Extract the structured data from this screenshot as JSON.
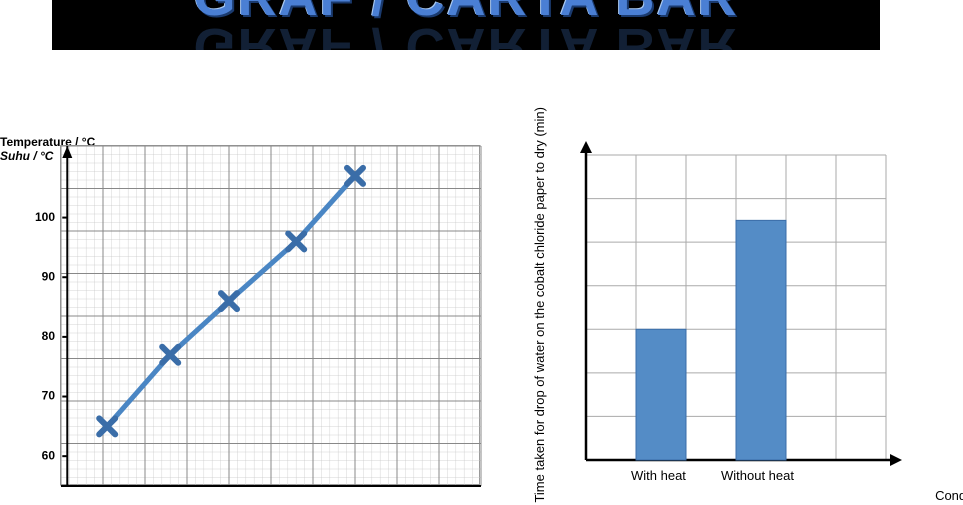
{
  "banner": {
    "text_main": "GRAF / CARTA BAR",
    "text_color": "#4a7fd4",
    "bg_color": "#000000"
  },
  "line_chart": {
    "type": "scatter-line",
    "y_title_primary": "Temperature / °C",
    "y_title_secondary": "Suhu / °C",
    "title_fontsize": 12,
    "y_ticks": [
      60,
      70,
      80,
      90,
      100
    ],
    "ylim_min": 55,
    "ylim_max": 112,
    "xlim_min": 0,
    "xlim_max": 10,
    "x_major_cols": 10,
    "y_major_rows": 8,
    "fine_per_major_x": 5,
    "fine_per_major_y": 5,
    "points_x": [
      1.1,
      2.6,
      4.0,
      5.6,
      7.0
    ],
    "points_y": [
      65,
      77,
      86,
      96,
      107
    ],
    "line_color": "#4a86c4",
    "line_width": 5,
    "marker": "x",
    "marker_color": "#3a6da8",
    "marker_size": 16,
    "marker_stroke_width": 6,
    "grid_color_fine": "#c9c9c9",
    "grid_color_major": "#888888",
    "bg_color": "#ffffff",
    "axis_color": "#000000"
  },
  "bar_chart": {
    "type": "bar",
    "y_title": "Time taken for drop of water on the cobalt chloride paper to dry (min)",
    "x_title": "Condition",
    "categories": [
      "With heat",
      "Without heat"
    ],
    "values": [
      3,
      5.5
    ],
    "ylim_min": 0,
    "ylim_max": 7,
    "grid_cols": 6,
    "grid_rows": 7,
    "bar_color": "#548cc6",
    "bar_border_color": "#3a6da8",
    "bar_width_cells": 1,
    "grid_color": "#aaaaaa",
    "axis_color": "#000000",
    "bg_color": "#ffffff",
    "label_fontsize": 13
  }
}
